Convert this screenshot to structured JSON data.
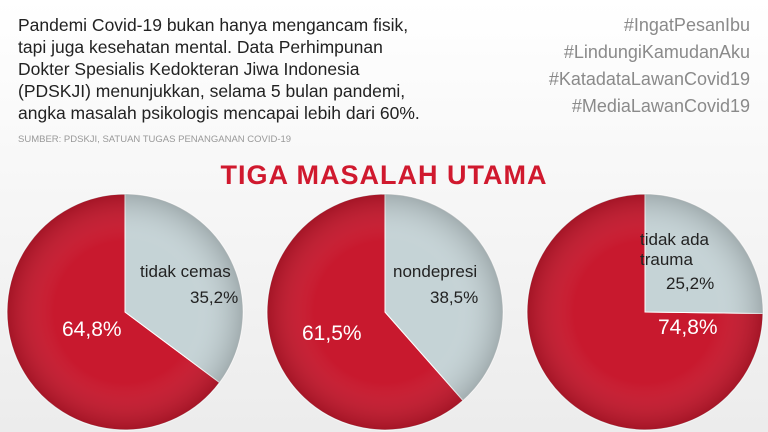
{
  "intro": [
    "Pandemi Covid-19 bukan hanya mengancam fisik,",
    "tapi juga kesehatan mental. Data Perhimpunan",
    "Dokter Spesialis Kedokteran Jiwa Indonesia",
    "(PDSKJI) menunjukkan, selama 5 bulan pandemi,",
    "angka masalah psikologis mencapai lebih dari 60%."
  ],
  "hashtags": [
    "#IngatPesanIbu",
    "#LindungiKamudanAku",
    "#KatadataLawanCovid19",
    "#MediaLawanCovid19"
  ],
  "source": "SUMBER: PDSKJI, SATUAN TUGAS PENANGANAN COVID-19",
  "heading": "TIGA MASALAH UTAMA",
  "chart_data": [
    {
      "type": "pie",
      "categories": [
        null,
        "tidak cemas"
      ],
      "values": [
        64.8,
        35.2
      ],
      "value_labels": [
        "64,8%",
        "35,2%"
      ],
      "colors": [
        "#c8192e",
        "#c5d3d6"
      ]
    },
    {
      "type": "pie",
      "categories": [
        null,
        "nondepresi"
      ],
      "values": [
        61.5,
        38.5
      ],
      "value_labels": [
        "61,5%",
        "38,5%"
      ],
      "colors": [
        "#c8192e",
        "#c5d3d6"
      ]
    },
    {
      "type": "pie",
      "categories": [
        null,
        "tidak ada trauma"
      ],
      "values": [
        74.8,
        25.2
      ],
      "value_labels": [
        "74,8%",
        "25,2%"
      ],
      "colors": [
        "#c8192e",
        "#c5d3d6"
      ]
    }
  ]
}
